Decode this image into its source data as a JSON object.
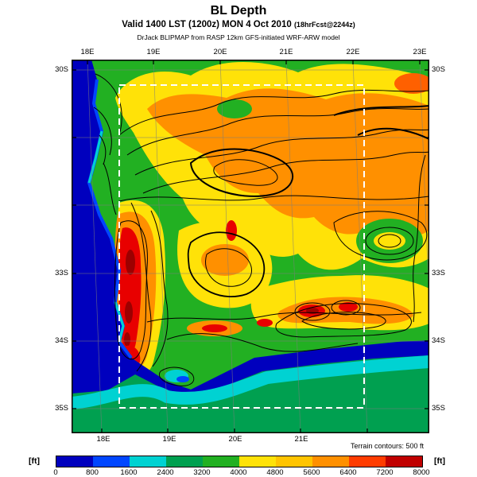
{
  "header": {
    "title": "BL Depth",
    "valid_main": "Valid 1400 LST (1200z) MON 4 Oct 2010 ",
    "fcst_note": "(18hrFcst@2244z)",
    "model_line": "DrJack BLIPMAP from RASP 12km GFS-initiated WRF-ARW model"
  },
  "map": {
    "top_lon_labels": [
      "18E",
      "19E",
      "20E",
      "21E",
      "22E",
      "23E"
    ],
    "bottom_lon_labels": [
      "18E",
      "19E",
      "20E",
      "21E"
    ],
    "left_lat_labels": [
      "30S",
      "33S",
      "34S",
      "35S"
    ],
    "right_lat_labels": [
      "30S",
      "33S",
      "34S",
      "35S"
    ],
    "terrain_note": "Terrain contours: 500 ft"
  },
  "colorbar": {
    "units_label": "[ft]",
    "tick_labels": [
      "0",
      "800",
      "1600",
      "2400",
      "3200",
      "4000",
      "4800",
      "5600",
      "6400",
      "7200",
      "8000"
    ],
    "colors": [
      "#0000BE",
      "#0046FF",
      "#00D2D2",
      "#00A050",
      "#22B022",
      "#FFE208",
      "#FFC400",
      "#FF9000",
      "#FF3C00",
      "#C00000"
    ]
  },
  "chart_data": {
    "type": "heatmap",
    "title": "BL Depth",
    "valid": "Valid 1400 LST (1200z) MON 4 Oct 2010",
    "forecast": "18hrFcst@2244z",
    "model": "DrJack BLIPMAP from RASP 12km GFS-initiated WRF-ARW model",
    "units": "ft",
    "scale_ticks_ft": [
      0,
      800,
      1600,
      2400,
      3200,
      4000,
      4800,
      5600,
      6400,
      7200,
      8000
    ],
    "palette": [
      "#0000BE",
      "#0046FF",
      "#00D2D2",
      "#00A050",
      "#22B022",
      "#FFE208",
      "#FFC400",
      "#FF9000",
      "#FF3C00",
      "#C00000"
    ],
    "x_axis": {
      "label_type": "longitude",
      "ticks": [
        "18E",
        "19E",
        "20E",
        "21E",
        "22E",
        "23E"
      ]
    },
    "y_axis": {
      "label_type": "latitude",
      "ticks": [
        "30S",
        "33S",
        "34S",
        "35S"
      ]
    },
    "terrain_contour_interval_ft": 500,
    "overlay": "white dashed inner model-domain boundary box",
    "features": [
      {
        "region": "west coast offshore waters",
        "bl_depth_ft": "0-800"
      },
      {
        "region": "south coast nearshore waters",
        "bl_depth_ft": "800-2400"
      },
      {
        "region": "southern offshore band",
        "bl_depth_ft": "2400-3200"
      },
      {
        "region": "general land background",
        "bl_depth_ft": "3200-4000"
      },
      {
        "region": "interior plateau north and east",
        "bl_depth_ft": "4800-6400"
      },
      {
        "region": "west coast interior strip",
        "bl_depth_ft": "6400-7200"
      },
      {
        "region": "local maxima cores (dark red)",
        "bl_depth_ft": "7200-8000"
      }
    ]
  }
}
